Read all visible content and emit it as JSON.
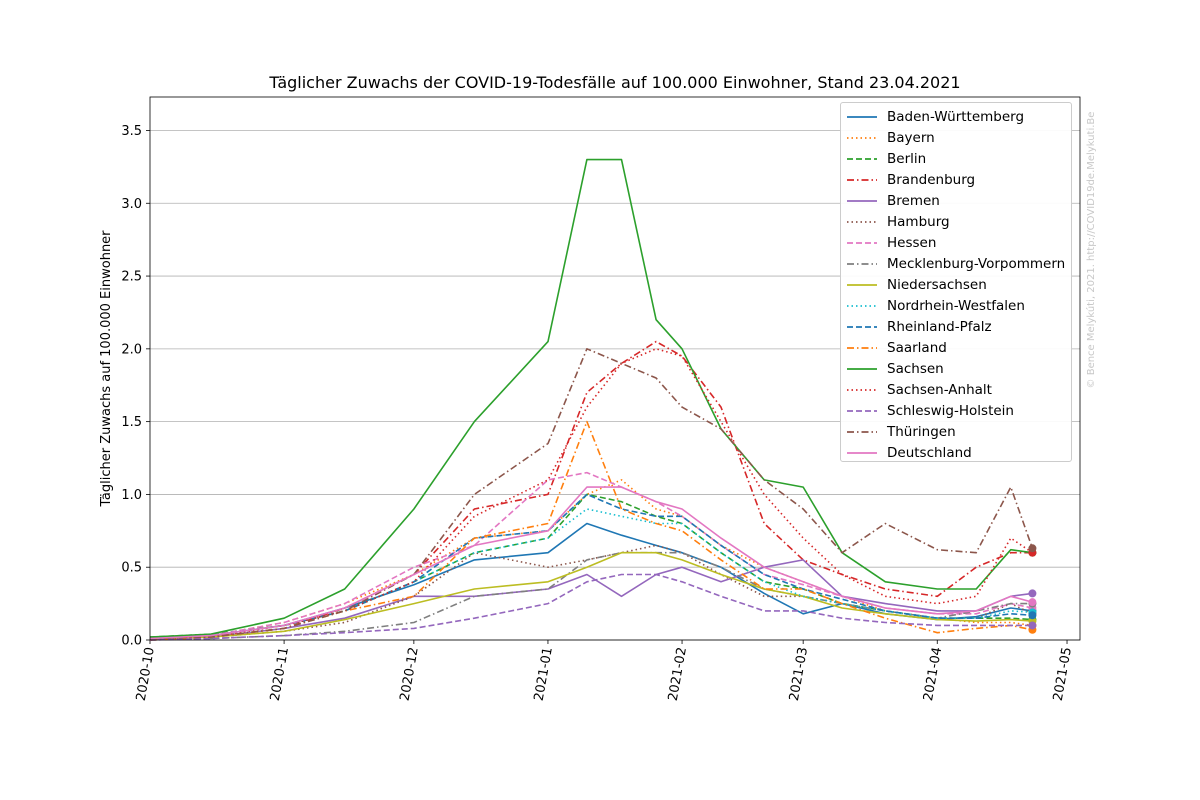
{
  "chart_data": {
    "type": "line",
    "title": "Täglicher Zuwachs der COVID-19-Todesfälle auf 100.000 Einwohner, Stand 23.04.2021",
    "xlabel": "",
    "ylabel": "Täglicher Zuwachs auf 100.000 Einwohner",
    "watermark": "© Bence Melykúti, 2021. http://COVID19de.Melykuti.Be",
    "x_ticks": [
      "2020-10",
      "2020-11",
      "2020-12",
      "2021-01",
      "2021-02",
      "2021-03",
      "2021-04",
      "2021-05"
    ],
    "y_ticks": [
      "0.0",
      "0.5",
      "1.0",
      "1.5",
      "2.0",
      "2.5",
      "3.0",
      "3.5"
    ],
    "xlim": [
      "2020-10-01",
      "2021-05-04"
    ],
    "ylim": [
      0,
      3.73
    ],
    "grid": "horizontal",
    "legend_position": "top-right",
    "x_dates": [
      "2020-10-01",
      "2020-10-15",
      "2020-11-01",
      "2020-11-15",
      "2020-12-01",
      "2020-12-15",
      "2021-01-01",
      "2021-01-10",
      "2021-01-18",
      "2021-01-26",
      "2021-02-01",
      "2021-02-10",
      "2021-02-20",
      "2021-03-01",
      "2021-03-10",
      "2021-03-20",
      "2021-04-01",
      "2021-04-10",
      "2021-04-18",
      "2021-04-23"
    ],
    "series": [
      {
        "name": "Baden-Württemberg",
        "color": "#1f77b4",
        "dash": "solid",
        "values": [
          0.01,
          0.03,
          0.1,
          0.22,
          0.38,
          0.55,
          0.6,
          0.8,
          0.72,
          0.65,
          0.6,
          0.5,
          0.32,
          0.18,
          0.25,
          0.18,
          0.14,
          0.16,
          0.22,
          0.2
        ]
      },
      {
        "name": "Bayern",
        "color": "#ff7f0e",
        "dash": "dot",
        "values": [
          0.01,
          0.03,
          0.12,
          0.25,
          0.45,
          0.7,
          0.75,
          1.0,
          1.1,
          0.9,
          0.85,
          0.65,
          0.5,
          0.4,
          0.3,
          0.2,
          0.15,
          0.12,
          0.12,
          0.1
        ]
      },
      {
        "name": "Berlin",
        "color": "#2ca02c",
        "dash": "dash",
        "values": [
          0.02,
          0.04,
          0.1,
          0.2,
          0.4,
          0.6,
          0.7,
          1.0,
          0.95,
          0.85,
          0.8,
          0.6,
          0.4,
          0.35,
          0.25,
          0.2,
          0.15,
          0.15,
          0.15,
          0.14
        ]
      },
      {
        "name": "Brandenburg",
        "color": "#d62728",
        "dash": "dashdot",
        "values": [
          0.0,
          0.02,
          0.08,
          0.22,
          0.45,
          0.9,
          1.0,
          1.7,
          1.9,
          2.05,
          1.95,
          1.6,
          0.8,
          0.55,
          0.45,
          0.35,
          0.3,
          0.5,
          0.6,
          0.6
        ]
      },
      {
        "name": "Bremen",
        "color": "#9467bd",
        "dash": "solid",
        "values": [
          0.0,
          0.02,
          0.08,
          0.15,
          0.3,
          0.3,
          0.35,
          0.45,
          0.3,
          0.45,
          0.5,
          0.4,
          0.5,
          0.55,
          0.3,
          0.25,
          0.2,
          0.2,
          0.3,
          0.32
        ]
      },
      {
        "name": "Hamburg",
        "color": "#8c564b",
        "dash": "dot",
        "values": [
          0.0,
          0.02,
          0.06,
          0.12,
          0.3,
          0.6,
          0.5,
          0.55,
          0.6,
          0.65,
          0.6,
          0.45,
          0.3,
          0.3,
          0.25,
          0.2,
          0.15,
          0.15,
          0.25,
          0.18
        ]
      },
      {
        "name": "Hessen",
        "color": "#e377c2",
        "dash": "dash",
        "values": [
          0.01,
          0.03,
          0.12,
          0.25,
          0.5,
          0.65,
          1.1,
          1.15,
          1.05,
          0.95,
          0.85,
          0.65,
          0.45,
          0.38,
          0.3,
          0.22,
          0.18,
          0.18,
          0.25,
          0.22
        ]
      },
      {
        "name": "Mecklenburg-Vorpommern",
        "color": "#7f7f7f",
        "dash": "dashdot",
        "values": [
          0.0,
          0.01,
          0.03,
          0.06,
          0.12,
          0.3,
          0.35,
          0.55,
          0.6,
          0.6,
          0.6,
          0.5,
          0.35,
          0.3,
          0.25,
          0.2,
          0.15,
          0.2,
          0.25,
          0.25
        ]
      },
      {
        "name": "Niedersachsen",
        "color": "#bcbd22",
        "dash": "solid",
        "values": [
          0.01,
          0.02,
          0.06,
          0.14,
          0.25,
          0.35,
          0.4,
          0.5,
          0.6,
          0.6,
          0.55,
          0.45,
          0.35,
          0.3,
          0.22,
          0.18,
          0.14,
          0.13,
          0.14,
          0.13
        ]
      },
      {
        "name": "Nordrhein-Westfalen",
        "color": "#17becf",
        "dash": "dot",
        "values": [
          0.01,
          0.03,
          0.1,
          0.2,
          0.4,
          0.6,
          0.7,
          0.9,
          0.85,
          0.8,
          0.8,
          0.6,
          0.4,
          0.3,
          0.25,
          0.2,
          0.15,
          0.15,
          0.2,
          0.19
        ]
      },
      {
        "name": "Rheinland-Pfalz",
        "color": "#1f77b4",
        "dash": "dash",
        "values": [
          0.01,
          0.03,
          0.1,
          0.2,
          0.4,
          0.7,
          0.75,
          1.0,
          0.9,
          0.85,
          0.85,
          0.65,
          0.45,
          0.35,
          0.28,
          0.2,
          0.15,
          0.15,
          0.18,
          0.17
        ]
      },
      {
        "name": "Saarland",
        "color": "#ff7f0e",
        "dash": "dashdot",
        "values": [
          0.0,
          0.02,
          0.08,
          0.2,
          0.3,
          0.7,
          0.8,
          1.5,
          0.9,
          0.8,
          0.75,
          0.55,
          0.35,
          0.35,
          0.25,
          0.15,
          0.05,
          0.08,
          0.1,
          0.07
        ]
      },
      {
        "name": "Sachsen",
        "color": "#2ca02c",
        "dash": "solid",
        "values": [
          0.02,
          0.04,
          0.15,
          0.35,
          0.9,
          1.5,
          2.05,
          3.3,
          3.3,
          2.2,
          2.0,
          1.45,
          1.1,
          1.05,
          0.6,
          0.4,
          0.35,
          0.35,
          0.62,
          0.6
        ]
      },
      {
        "name": "Sachsen-Anhalt",
        "color": "#d62728",
        "dash": "dot",
        "values": [
          0.0,
          0.02,
          0.1,
          0.2,
          0.4,
          0.85,
          1.1,
          1.6,
          1.9,
          2.0,
          1.95,
          1.5,
          1.0,
          0.7,
          0.45,
          0.3,
          0.25,
          0.3,
          0.7,
          0.6
        ]
      },
      {
        "name": "Schleswig-Holstein",
        "color": "#9467bd",
        "dash": "dash",
        "values": [
          0.0,
          0.01,
          0.03,
          0.05,
          0.08,
          0.15,
          0.25,
          0.4,
          0.45,
          0.45,
          0.4,
          0.3,
          0.2,
          0.2,
          0.15,
          0.12,
          0.1,
          0.1,
          0.1,
          0.1
        ]
      },
      {
        "name": "Thüringen",
        "color": "#8c564b",
        "dash": "dashdot",
        "values": [
          0.01,
          0.02,
          0.08,
          0.2,
          0.45,
          1.0,
          1.35,
          2.0,
          1.9,
          1.8,
          1.6,
          1.45,
          1.1,
          0.9,
          0.6,
          0.8,
          0.62,
          0.6,
          1.05,
          0.63
        ]
      },
      {
        "name": "Deutschland",
        "color": "#e377c2",
        "dash": "solid",
        "values": [
          0.01,
          0.03,
          0.1,
          0.22,
          0.45,
          0.65,
          0.75,
          1.05,
          1.05,
          0.95,
          0.9,
          0.7,
          0.5,
          0.4,
          0.3,
          0.22,
          0.18,
          0.2,
          0.3,
          0.26
        ]
      }
    ]
  }
}
